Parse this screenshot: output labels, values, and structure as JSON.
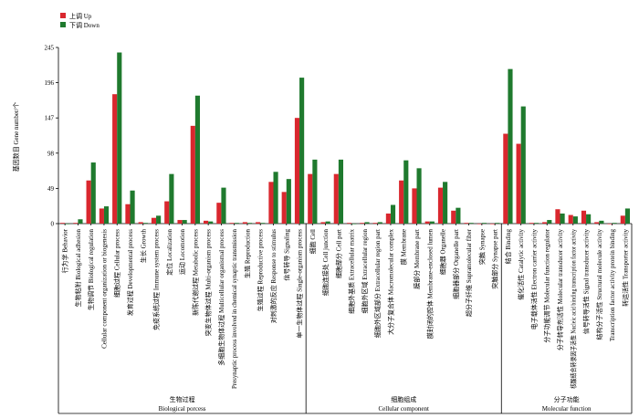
{
  "chart_data": {
    "type": "bar",
    "y_label": "基因数目  Gene number/个",
    "ylim": [
      0,
      245
    ],
    "yticks": [
      0,
      49,
      98,
      147,
      196,
      245
    ],
    "groups": [
      {
        "name": "生物过程",
        "name_en": "Biological porcess",
        "categories": [
          "行为学  Behavior",
          "生物粘附  Biological adhesion",
          "生物调节  Biological regulation",
          "Cellular component organization or biogenesis",
          "细胞过程  Cellular process",
          "发育过程  Developmental process",
          "生长  Growth",
          "免疫系统过程  Immune system process",
          "定位  Localization",
          "运动  Locomotion",
          "新陈代谢过程  Metabolic process",
          "突变生物体过程  Multi-organism process",
          "多细胞生物体过程  Multicellular organismal process",
          "Presynaptic process involved in chemical synaptic transmission",
          "生殖  Reproduction",
          "生殖过程  Reproductive process",
          "对刺激的反应  Response to stimulus",
          "信号转导  Signaling",
          "单一生物体过程  Single-organism process"
        ]
      },
      {
        "name": "细胞组成",
        "name_en": "Cellular component",
        "categories": [
          "细胞  Cell",
          "细胞连接处  Cell junction",
          "细胞部分  Cell part",
          "细胞外基质  Extracellular matrix",
          "细胞外区域  Extracellular region",
          "细胞外区域部分  Extracellular region part",
          "大分子复合体  Macromolecular complex",
          "膜  Membrane",
          "膜部分  Membrane part",
          "膜封闭的腔体  Membrane-enclosed lumen",
          "细胞器  Organelle",
          "细胞器部分  Organelle part",
          "超分子纤维  Supramolecular fiber",
          "突触  Synapse",
          "突触部分  Synapse part"
        ]
      },
      {
        "name": "分子功能",
        "name_en": "Molecular function",
        "categories": [
          "结合  Binding",
          "催化活性  Catalytic activity",
          "电子载体活性  Electron carrier activity",
          "分子功能调节  Molecular function regulator",
          "分子转导剂活性  Molecular transducer activity",
          "核酸结合转录因子活性  Nucleic acid binding transcription factor activity",
          "信号转导活性  Signal transducer activity",
          "结构分子活性  Structural molecule activity",
          "Transcription factor activity protein binding",
          "转运活性  Transporter activity"
        ]
      }
    ],
    "series": [
      {
        "name": "上调  Up",
        "color": "#d9272e",
        "values": [
          1,
          1,
          60,
          21,
          180,
          27,
          2,
          8,
          31,
          5,
          136,
          4,
          29,
          1,
          2,
          2,
          58,
          44,
          147,
          69,
          2,
          69,
          1,
          1,
          1,
          14,
          60,
          49,
          3,
          50,
          18,
          1,
          0,
          0,
          125,
          111,
          1,
          2,
          20,
          12,
          18,
          2,
          0,
          11
        ]
      },
      {
        "name": "下调  Down",
        "color": "#1f7a2e",
        "values": [
          0,
          6,
          85,
          24,
          238,
          46,
          1,
          11,
          69,
          5,
          178,
          3,
          50,
          1,
          1,
          1,
          72,
          62,
          203,
          89,
          3,
          89,
          0,
          2,
          2,
          26,
          88,
          77,
          3,
          58,
          22,
          1,
          1,
          1,
          215,
          163,
          1,
          5,
          14,
          10,
          13,
          4,
          1,
          21
        ]
      }
    ]
  }
}
